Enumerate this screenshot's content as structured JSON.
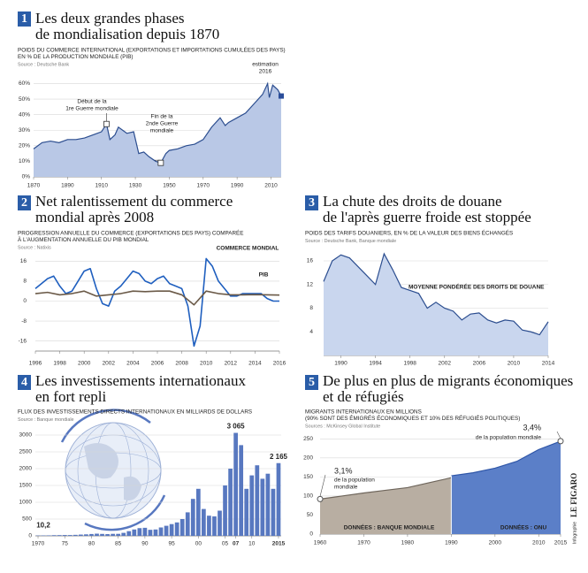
{
  "credit": [
    "Infographie",
    "LE FIGARO"
  ],
  "chart_data": [
    {
      "number": "1",
      "type": "area",
      "title": [
        "Les deux grandes phases",
        "de mondialisation depuis 1870"
      ],
      "subtitle": [
        "POIDS DU COMMERCE INTERNATIONAL (EXPORTATIONS ET IMPORTATIONS CUMULÉES DES PAYS)",
        "EN % DE LA PRODUCTION MONDIALE (PIB)"
      ],
      "source": "Source : Deutsche Bank",
      "annotations": [
        {
          "lines": [
            "Début de la",
            "1re Guerre mondiale"
          ]
        },
        {
          "lines": [
            "Fin de la",
            "2nde Guerre",
            "mondiale"
          ]
        },
        {
          "lines": [
            "estimation",
            "2016"
          ]
        }
      ],
      "series": [
        {
          "color": "#2b4d8f",
          "fill": "#b9c8e6",
          "x": [
            1870,
            1875,
            1880,
            1885,
            1890,
            1895,
            1900,
            1905,
            1910,
            1913,
            1915,
            1918,
            1920,
            1925,
            1929,
            1932,
            1935,
            1938,
            1942,
            1945,
            1948,
            1950,
            1955,
            1960,
            1965,
            1970,
            1975,
            1980,
            1983,
            1985,
            1990,
            1995,
            2000,
            2005,
            2008,
            2009,
            2011,
            2014,
            2016
          ],
          "values": [
            18,
            22,
            23,
            22,
            24,
            24,
            25,
            27,
            29,
            34,
            24,
            27,
            32,
            28,
            29,
            15,
            16,
            13,
            10,
            9,
            15,
            17,
            18,
            20,
            21,
            24,
            32,
            38,
            33,
            35,
            38,
            41,
            47,
            53,
            60,
            51,
            59,
            56,
            52
          ]
        }
      ],
      "xlim": [
        1870,
        2016
      ],
      "xticks": [
        1870,
        1890,
        1910,
        1930,
        1950,
        1970,
        1990,
        2010
      ],
      "ylim": [
        0,
        62
      ],
      "yticks": [
        {
          "value": 0,
          "label": "0%"
        },
        {
          "value": 10,
          "label": "10%"
        },
        {
          "value": 20,
          "label": "20%"
        },
        {
          "value": 30,
          "label": "30%"
        },
        {
          "value": 40,
          "label": "40%"
        },
        {
          "value": 50,
          "label": "50%"
        },
        {
          "value": 60,
          "label": "60%"
        }
      ],
      "grid": true
    },
    {
      "number": "2",
      "type": "line",
      "title": [
        "Net ralentissement du commerce",
        "mondial après 2008"
      ],
      "subtitle": [
        "PROGRESSION ANNUELLE DU COMMERCE (EXPORTATIONS DES PAYS) COMPARÉE",
        "À L'AUGMENTATION ANNUELLE DU PIB MONDIAL"
      ],
      "source": "Source : Natixis",
      "series": [
        {
          "name": "COMMERCE MONDIAL",
          "color": "#1f5fbf",
          "x": [
            1996,
            1996.5,
            1997,
            1997.5,
            1998,
            1998.5,
            1999,
            1999.5,
            2000,
            2000.5,
            2001,
            2001.5,
            2002,
            2002.5,
            2003,
            2003.5,
            2004,
            2004.5,
            2005,
            2005.5,
            2006,
            2006.5,
            2007,
            2007.5,
            2008,
            2008.5,
            2009,
            2009.5,
            2010,
            2010.5,
            2011,
            2011.5,
            2012,
            2012.5,
            2013,
            2013.5,
            2014,
            2014.5,
            2015,
            2015.5,
            2016
          ],
          "values": [
            5,
            7,
            9,
            10,
            6,
            3,
            4,
            8,
            12,
            13,
            5,
            -1,
            -2,
            4,
            6,
            9,
            12,
            11,
            8,
            7,
            9,
            10,
            7,
            6,
            5,
            -2,
            -18,
            -10,
            17,
            14,
            8,
            5,
            2,
            2,
            3,
            3,
            3,
            3,
            1,
            0,
            0
          ]
        },
        {
          "name": "PIB",
          "color": "#6b5a48",
          "x": [
            1996,
            1997,
            1998,
            1999,
            2000,
            2001,
            2002,
            2003,
            2004,
            2005,
            2006,
            2007,
            2008,
            2009,
            2010,
            2011,
            2012,
            2013,
            2014,
            2015,
            2016
          ],
          "values": [
            3,
            3.5,
            2.5,
            3,
            4,
            2,
            2.5,
            3,
            4,
            3.8,
            4,
            4,
            2.5,
            -1.5,
            4,
            3,
            2.5,
            2.5,
            2.6,
            2.5,
            2.4
          ]
        }
      ],
      "xlim": [
        1996,
        2016
      ],
      "xticks": [
        1996,
        1998,
        2000,
        2002,
        2004,
        2006,
        2008,
        2010,
        2012,
        2014,
        2016
      ],
      "ylim": [
        -20,
        20
      ],
      "yticks": [
        -16,
        -8,
        0,
        8,
        16
      ],
      "grid": true
    },
    {
      "number": "3",
      "type": "area",
      "title": [
        "La chute des droits de douane",
        "de l'après guerre froide est stoppée"
      ],
      "subtitle": [
        "POIDS DES TARIFS DOUANIERS, EN % DE LA VALEUR DES BIENS ÉCHANGÉS"
      ],
      "source": "Source : Deutsche Bank, Banque mondiale",
      "series": [
        {
          "name": "MOYENNE PONDÉRÉE DES DROITS DE DOUANE",
          "color": "#2b4d8f",
          "fill": "#c9d6ee",
          "x": [
            1988,
            1989,
            1990,
            1991,
            1992,
            1993,
            1994,
            1995,
            1996,
            1997,
            1998,
            1999,
            2000,
            2001,
            2002,
            2003,
            2004,
            2005,
            2006,
            2007,
            2008,
            2009,
            2010,
            2011,
            2012,
            2013,
            2014
          ],
          "values": [
            12.5,
            16,
            17,
            16.5,
            15,
            13.5,
            12,
            17.2,
            14.5,
            11.5,
            11,
            10.5,
            8,
            9,
            8,
            7.5,
            6,
            7,
            7.2,
            6,
            5.5,
            6,
            5.8,
            4.3,
            4,
            3.5,
            5.7
          ]
        }
      ],
      "xlim": [
        1988,
        2014
      ],
      "xticks": [
        1990,
        1994,
        1998,
        2002,
        2006,
        2010,
        2014
      ],
      "ylim": [
        0,
        16
      ],
      "yticks": [
        4,
        8,
        12,
        16
      ],
      "grid": true
    },
    {
      "number": "4",
      "type": "bar",
      "title": [
        "Les investissements internationaux",
        "en fort repli"
      ],
      "subtitle": [
        "FLUX DES INVESTISSEMENTS DIRECTS INTERNATIONAUX EN MILLIARDS DE DOLLARS"
      ],
      "source": "Source : Banque mondiale",
      "series": [
        {
          "color": "#5878c0",
          "x": [
            1970,
            1971,
            1972,
            1973,
            1974,
            1975,
            1976,
            1977,
            1978,
            1979,
            1980,
            1981,
            1982,
            1983,
            1984,
            1985,
            1986,
            1987,
            1988,
            1989,
            1990,
            1991,
            1992,
            1993,
            1994,
            1995,
            1996,
            1997,
            1998,
            1999,
            2000,
            2001,
            2002,
            2003,
            2004,
            2005,
            2006,
            2007,
            2008,
            2009,
            2010,
            2011,
            2012,
            2013,
            2014,
            2015
          ],
          "values": [
            10.2,
            12,
            14,
            20,
            22,
            25,
            24,
            30,
            38,
            45,
            55,
            65,
            58,
            52,
            60,
            60,
            90,
            140,
            190,
            230,
            240,
            180,
            190,
            250,
            300,
            350,
            400,
            500,
            700,
            1100,
            1400,
            800,
            600,
            580,
            750,
            1500,
            2000,
            3065,
            2700,
            1400,
            1800,
            2100,
            1700,
            1850,
            1400,
            2165
          ],
          "value_labels": [
            "10,2",
            null,
            null,
            null,
            null,
            null,
            null,
            null,
            null,
            null,
            null,
            null,
            null,
            null,
            null,
            null,
            null,
            null,
            null,
            null,
            null,
            null,
            null,
            null,
            null,
            null,
            null,
            null,
            null,
            null,
            null,
            null,
            null,
            null,
            null,
            null,
            null,
            "3 065",
            null,
            null,
            null,
            null,
            null,
            null,
            null,
            "2 165"
          ]
        }
      ],
      "xlim": [
        1969.5,
        2015.5
      ],
      "xticks": [
        1970,
        {
          "value": 1975,
          "label": "75"
        },
        {
          "value": 1980,
          "label": "80"
        },
        {
          "value": 1985,
          "label": "85"
        },
        {
          "value": 1990,
          "label": "90"
        },
        {
          "value": 1995,
          "label": "95"
        },
        {
          "value": 2000,
          "label": "00"
        },
        {
          "value": 2005,
          "label": "05"
        },
        {
          "value": 2007,
          "label": "07"
        },
        {
          "value": 2010,
          "label": "10"
        },
        2015
      ],
      "ylim": [
        0,
        3000
      ],
      "yticks": [
        0,
        500,
        1000,
        1500,
        2000,
        2500,
        3000
      ],
      "grid": true
    },
    {
      "number": "5",
      "type": "area",
      "title": [
        "De plus en plus de migrants économiques",
        "et de réfugiés"
      ],
      "subtitle": [
        "MIGRANTS INTERNATIONAUX EN MILLIONS",
        "(90% SONT DES ÉMIGRÉS ÉCONOMIQUES ET 10% DES RÉFUGIÉS POLITIQUES)"
      ],
      "source": "Sources : McKinsey Global Institute",
      "annotations": [
        {
          "lines": [
            "3,1%",
            "de la population",
            "mondiale"
          ]
        },
        {
          "lines": [
            "3,4%",
            "de la population mondiale"
          ]
        }
      ],
      "series": [
        {
          "name": "DONNÉES : BANQUE MONDIALE",
          "color": "#6e655b",
          "fill": "#b8aea2",
          "x": [
            1960,
            1965,
            1970,
            1975,
            1980,
            1985,
            1990
          ],
          "values": [
            92,
            100,
            108,
            115,
            122,
            135,
            148
          ]
        },
        {
          "name": "DONNÉES : ONU",
          "color": "#2f56a8",
          "fill": "#5b7fc8",
          "x": [
            1990,
            1995,
            2000,
            2005,
            2010,
            2015
          ],
          "values": [
            153,
            161,
            173,
            191,
            222,
            244
          ]
        }
      ],
      "xlim": [
        1960,
        2015
      ],
      "xticks": [
        1960,
        1970,
        1980,
        1990,
        2000,
        2010,
        2015
      ],
      "ylim": [
        0,
        260
      ],
      "yticks": [
        0,
        50,
        100,
        150,
        200,
        250
      ],
      "grid": true
    }
  ]
}
